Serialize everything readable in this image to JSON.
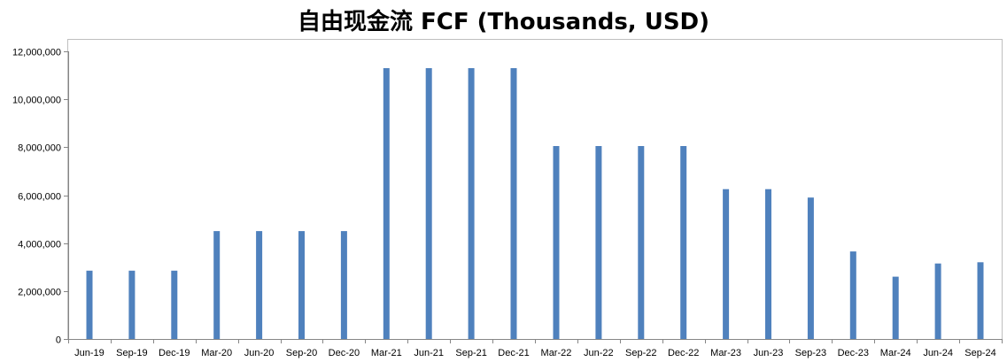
{
  "chart_data": {
    "type": "bar",
    "title": "自由现金流 FCF (Thousands, USD)",
    "categories": [
      "Jun-19",
      "Sep-19",
      "Dec-19",
      "Mar-20",
      "Jun-20",
      "Sep-20",
      "Dec-20",
      "Mar-21",
      "Jun-21",
      "Sep-21",
      "Dec-21",
      "Mar-22",
      "Jun-22",
      "Sep-22",
      "Dec-22",
      "Mar-23",
      "Jun-23",
      "Sep-23",
      "Dec-23",
      "Mar-24",
      "Jun-24",
      "Sep-24"
    ],
    "values": [
      2850000,
      2850000,
      2850000,
      4500000,
      4500000,
      4500000,
      4500000,
      11300000,
      11300000,
      11300000,
      11300000,
      8050000,
      8050000,
      8050000,
      8050000,
      6250000,
      6250000,
      5900000,
      3650000,
      2600000,
      3150000,
      3200000
    ],
    "ylim": [
      0,
      12000000
    ],
    "yticks": [
      0,
      2000000,
      4000000,
      6000000,
      8000000,
      10000000,
      12000000
    ],
    "ytick_labels": [
      "0",
      "2,000,000",
      "4,000,000",
      "6,000,000",
      "8,000,000",
      "10,000,000",
      "12,000,000"
    ],
    "xlabel": "",
    "ylabel": "",
    "grid": false,
    "legend": "none",
    "bar_color": "#4F81BD"
  }
}
